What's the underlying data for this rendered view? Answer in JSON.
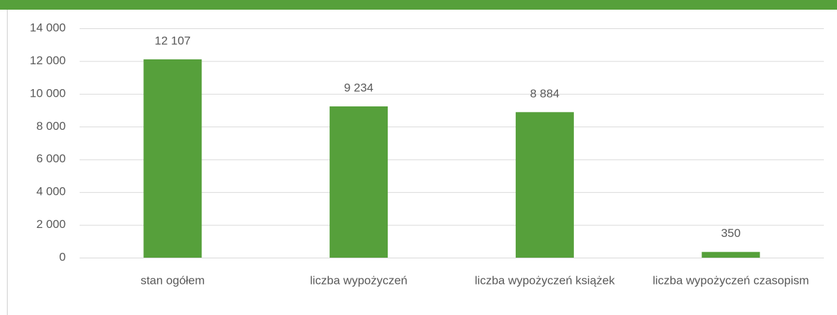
{
  "chart_data": {
    "type": "bar",
    "categories": [
      "stan ogółem",
      "liczba wypożyczeń",
      "liczba wypożyczeń książek",
      "liczba wypożyczeń czasopism"
    ],
    "values": [
      12107,
      9234,
      8884,
      350
    ],
    "value_labels": [
      "12 107",
      "9 234",
      "8 884",
      "350"
    ],
    "color": "#56a03b",
    "ylim": [
      0,
      14000
    ],
    "yticks": [
      0,
      {
        "value": 2000,
        "label": "2 000"
      },
      {
        "value": 4000,
        "label": "4 000"
      },
      {
        "value": 6000,
        "label": "6 000"
      },
      {
        "value": 8000,
        "label": "8 000"
      },
      {
        "value": 10000,
        "label": "10 000"
      },
      {
        "value": 12000,
        "label": "12 000"
      },
      {
        "value": 14000,
        "label": "14 000"
      }
    ],
    "grid": true
  }
}
